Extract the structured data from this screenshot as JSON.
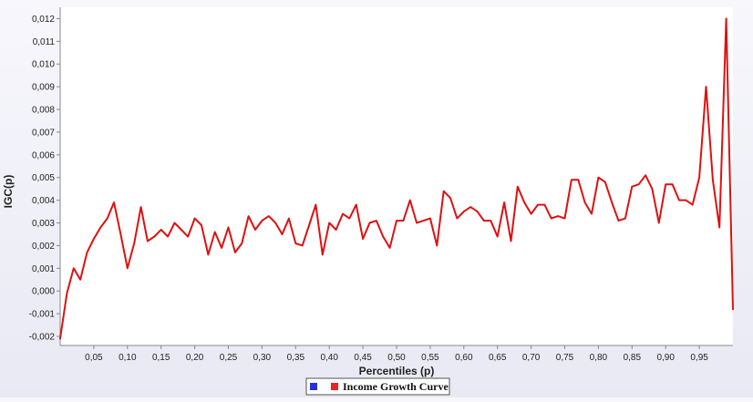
{
  "chart_data": {
    "type": "line",
    "title": "",
    "xlabel": "Percentiles (p)",
    "ylabel": "IGC(p)",
    "xlim": [
      0,
      1
    ],
    "ylim": [
      -0.0024,
      0.0125
    ],
    "x_tick_values": [
      0.05,
      0.1,
      0.15,
      0.2,
      0.25,
      0.3,
      0.35,
      0.4,
      0.45,
      0.5,
      0.55,
      0.6,
      0.65,
      0.7,
      0.75,
      0.8,
      0.85,
      0.9,
      0.95
    ],
    "x_tick_labels": [
      "0,05",
      "0,10",
      "0,15",
      "0,20",
      "0,25",
      "0,30",
      "0,35",
      "0,40",
      "0,45",
      "0,50",
      "0,55",
      "0,60",
      "0,65",
      "0,70",
      "0,75",
      "0,80",
      "0,85",
      "0,90",
      "0,95"
    ],
    "y_tick_values": [
      -0.002,
      -0.001,
      0.0,
      0.001,
      0.002,
      0.003,
      0.004,
      0.005,
      0.006,
      0.007,
      0.008,
      0.009,
      0.01,
      0.011,
      0.012
    ],
    "y_tick_labels": [
      "-0,002",
      "-0,001",
      "0,000",
      "0,001",
      "0,002",
      "0,003",
      "0,004",
      "0,005",
      "0,006",
      "0,007",
      "0,008",
      "0,009",
      "0,010",
      "0,011",
      "0,012"
    ],
    "grid": false,
    "legend_position": "bottom-center",
    "legend": [
      {
        "label": "",
        "color": "#2233dd"
      },
      {
        "label": "Income Growth Curve",
        "color": "#ee2222"
      }
    ],
    "series": [
      {
        "name": "Income Growth Curve",
        "color": "#dd1111",
        "x": [
          0.0,
          0.01,
          0.02,
          0.03,
          0.04,
          0.05,
          0.06,
          0.07,
          0.08,
          0.09,
          0.1,
          0.11,
          0.12,
          0.13,
          0.14,
          0.15,
          0.16,
          0.17,
          0.18,
          0.19,
          0.2,
          0.21,
          0.22,
          0.23,
          0.24,
          0.25,
          0.26,
          0.27,
          0.28,
          0.29,
          0.3,
          0.31,
          0.32,
          0.33,
          0.34,
          0.35,
          0.36,
          0.37,
          0.38,
          0.39,
          0.4,
          0.41,
          0.42,
          0.43,
          0.44,
          0.45,
          0.46,
          0.47,
          0.48,
          0.49,
          0.5,
          0.51,
          0.52,
          0.53,
          0.54,
          0.55,
          0.56,
          0.57,
          0.58,
          0.59,
          0.6,
          0.61,
          0.62,
          0.63,
          0.64,
          0.65,
          0.66,
          0.67,
          0.68,
          0.69,
          0.7,
          0.71,
          0.72,
          0.73,
          0.74,
          0.75,
          0.76,
          0.77,
          0.78,
          0.79,
          0.8,
          0.81,
          0.82,
          0.83,
          0.84,
          0.85,
          0.86,
          0.87,
          0.88,
          0.89,
          0.9,
          0.91,
          0.92,
          0.93,
          0.94,
          0.95,
          0.96,
          0.97,
          0.98,
          0.99,
          1.0
        ],
        "y": [
          -0.0021,
          -0.0001,
          0.001,
          0.0005,
          0.0017,
          0.0023,
          0.0028,
          0.0032,
          0.0039,
          0.0025,
          0.001,
          0.0021,
          0.0037,
          0.0022,
          0.0024,
          0.0027,
          0.0024,
          0.003,
          0.0027,
          0.0024,
          0.0032,
          0.0029,
          0.0016,
          0.0026,
          0.0019,
          0.0028,
          0.0017,
          0.0021,
          0.0033,
          0.0027,
          0.0031,
          0.0033,
          0.003,
          0.0025,
          0.0032,
          0.0021,
          0.002,
          0.0029,
          0.0038,
          0.0016,
          0.003,
          0.0027,
          0.0034,
          0.0032,
          0.0038,
          0.0023,
          0.003,
          0.0031,
          0.0024,
          0.0019,
          0.0031,
          0.0031,
          0.004,
          0.003,
          0.0031,
          0.0032,
          0.002,
          0.0044,
          0.0041,
          0.0032,
          0.0035,
          0.0037,
          0.0035,
          0.0031,
          0.0031,
          0.0024,
          0.0039,
          0.0022,
          0.0046,
          0.0039,
          0.0034,
          0.0038,
          0.0038,
          0.0032,
          0.0033,
          0.0032,
          0.0049,
          0.0049,
          0.0039,
          0.0034,
          0.005,
          0.0048,
          0.0039,
          0.0031,
          0.0032,
          0.0046,
          0.0047,
          0.0051,
          0.0045,
          0.003,
          0.0047,
          0.0047,
          0.004,
          0.004,
          0.0038,
          0.005,
          0.009,
          0.0049,
          0.0028,
          0.012,
          -0.0008
        ]
      }
    ]
  }
}
